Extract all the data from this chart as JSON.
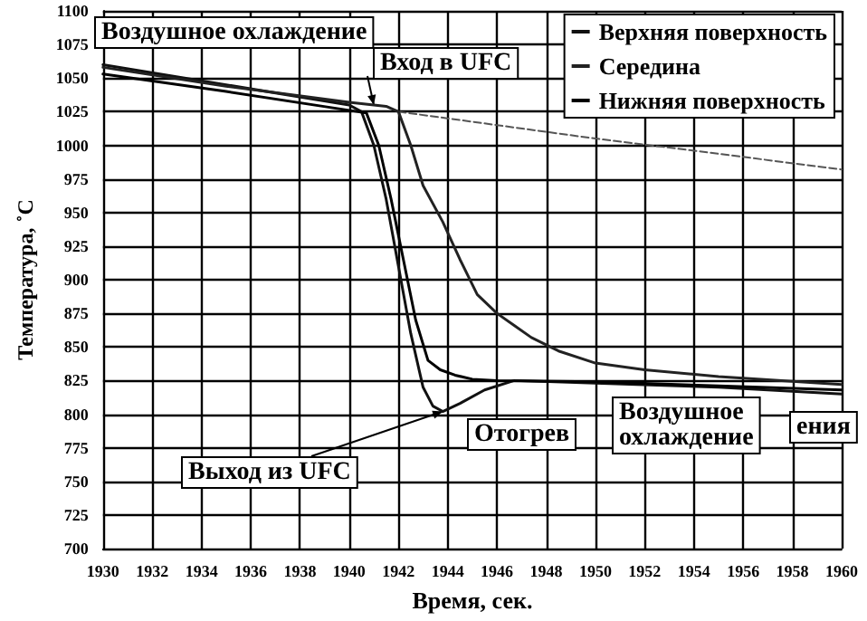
{
  "chart_data": {
    "type": "line",
    "xlabel": "Время, сек.",
    "ylabel": "Температура, ˚C",
    "xlim": [
      1930,
      1960
    ],
    "xticks": [
      1930,
      1932,
      1934,
      1936,
      1938,
      1940,
      1942,
      1944,
      1946,
      1948,
      1950,
      1952,
      1954,
      1956,
      1958,
      1960
    ],
    "ylim": [
      700,
      1100
    ],
    "yticks": [
      700,
      725,
      750,
      775,
      800,
      825,
      850,
      875,
      900,
      925,
      950,
      975,
      1000,
      1025,
      1050,
      1075,
      1100
    ],
    "grid": true,
    "legend": "top right",
    "marker": "none",
    "line_style": "solid",
    "series": [
      {
        "name": "Верхняя поверхность",
        "color": "#111111",
        "x": [
          1930,
          1935,
          1940,
          1940.5,
          1941,
          1941.5,
          1942,
          1942.5,
          1943,
          1943.4,
          1943.8,
          1944.5,
          1945.5,
          1946.7,
          1950,
          1955,
          1960
        ],
        "values": [
          1060,
          1045,
          1030,
          1025,
          1000,
          960,
          910,
          860,
          820,
          806,
          802,
          808,
          818,
          825,
          823,
          820,
          815
        ]
      },
      {
        "name": "Середина",
        "color": "#222222",
        "x": [
          1930,
          1935,
          1940,
          1941.5,
          1942,
          1942.5,
          1943,
          1943.8,
          1944.5,
          1945.2,
          1946,
          1946.7,
          1947.4,
          1948.5,
          1950,
          1952,
          1955,
          1960
        ],
        "values": [
          1058,
          1044,
          1032,
          1029,
          1025,
          1000,
          970,
          943,
          915,
          889,
          875,
          866,
          857,
          847,
          838,
          833,
          828,
          822
        ]
      },
      {
        "name": "Нижняя поверхность",
        "color": "#000000",
        "x": [
          1930,
          1935,
          1940,
          1940.7,
          1941.2,
          1941.7,
          1942.2,
          1942.7,
          1943.2,
          1943.7,
          1944.3,
          1945,
          1946,
          1950,
          1955,
          1960
        ],
        "values": [
          1053,
          1040,
          1026,
          1024,
          1000,
          960,
          915,
          870,
          840,
          833,
          829,
          826,
          825,
          824,
          821,
          818
        ]
      },
      {
        "color": "#555555",
        "line_style": "dashed",
        "x": [
          1942,
          1946,
          1950,
          1954,
          1960
        ],
        "values": [
          1025,
          1015,
          1005,
          996,
          982
        ]
      }
    ],
    "annotations": [
      "Воздушное охлаждение",
      {
        "text": "Вход в UFC",
        "x": 1941,
        "y": 1030
      },
      {
        "text": "Выход из UFC",
        "x": 1943.8,
        "y": 802
      },
      "Отогрев",
      "Воздушное\nохлаждение",
      "ения"
    ]
  }
}
